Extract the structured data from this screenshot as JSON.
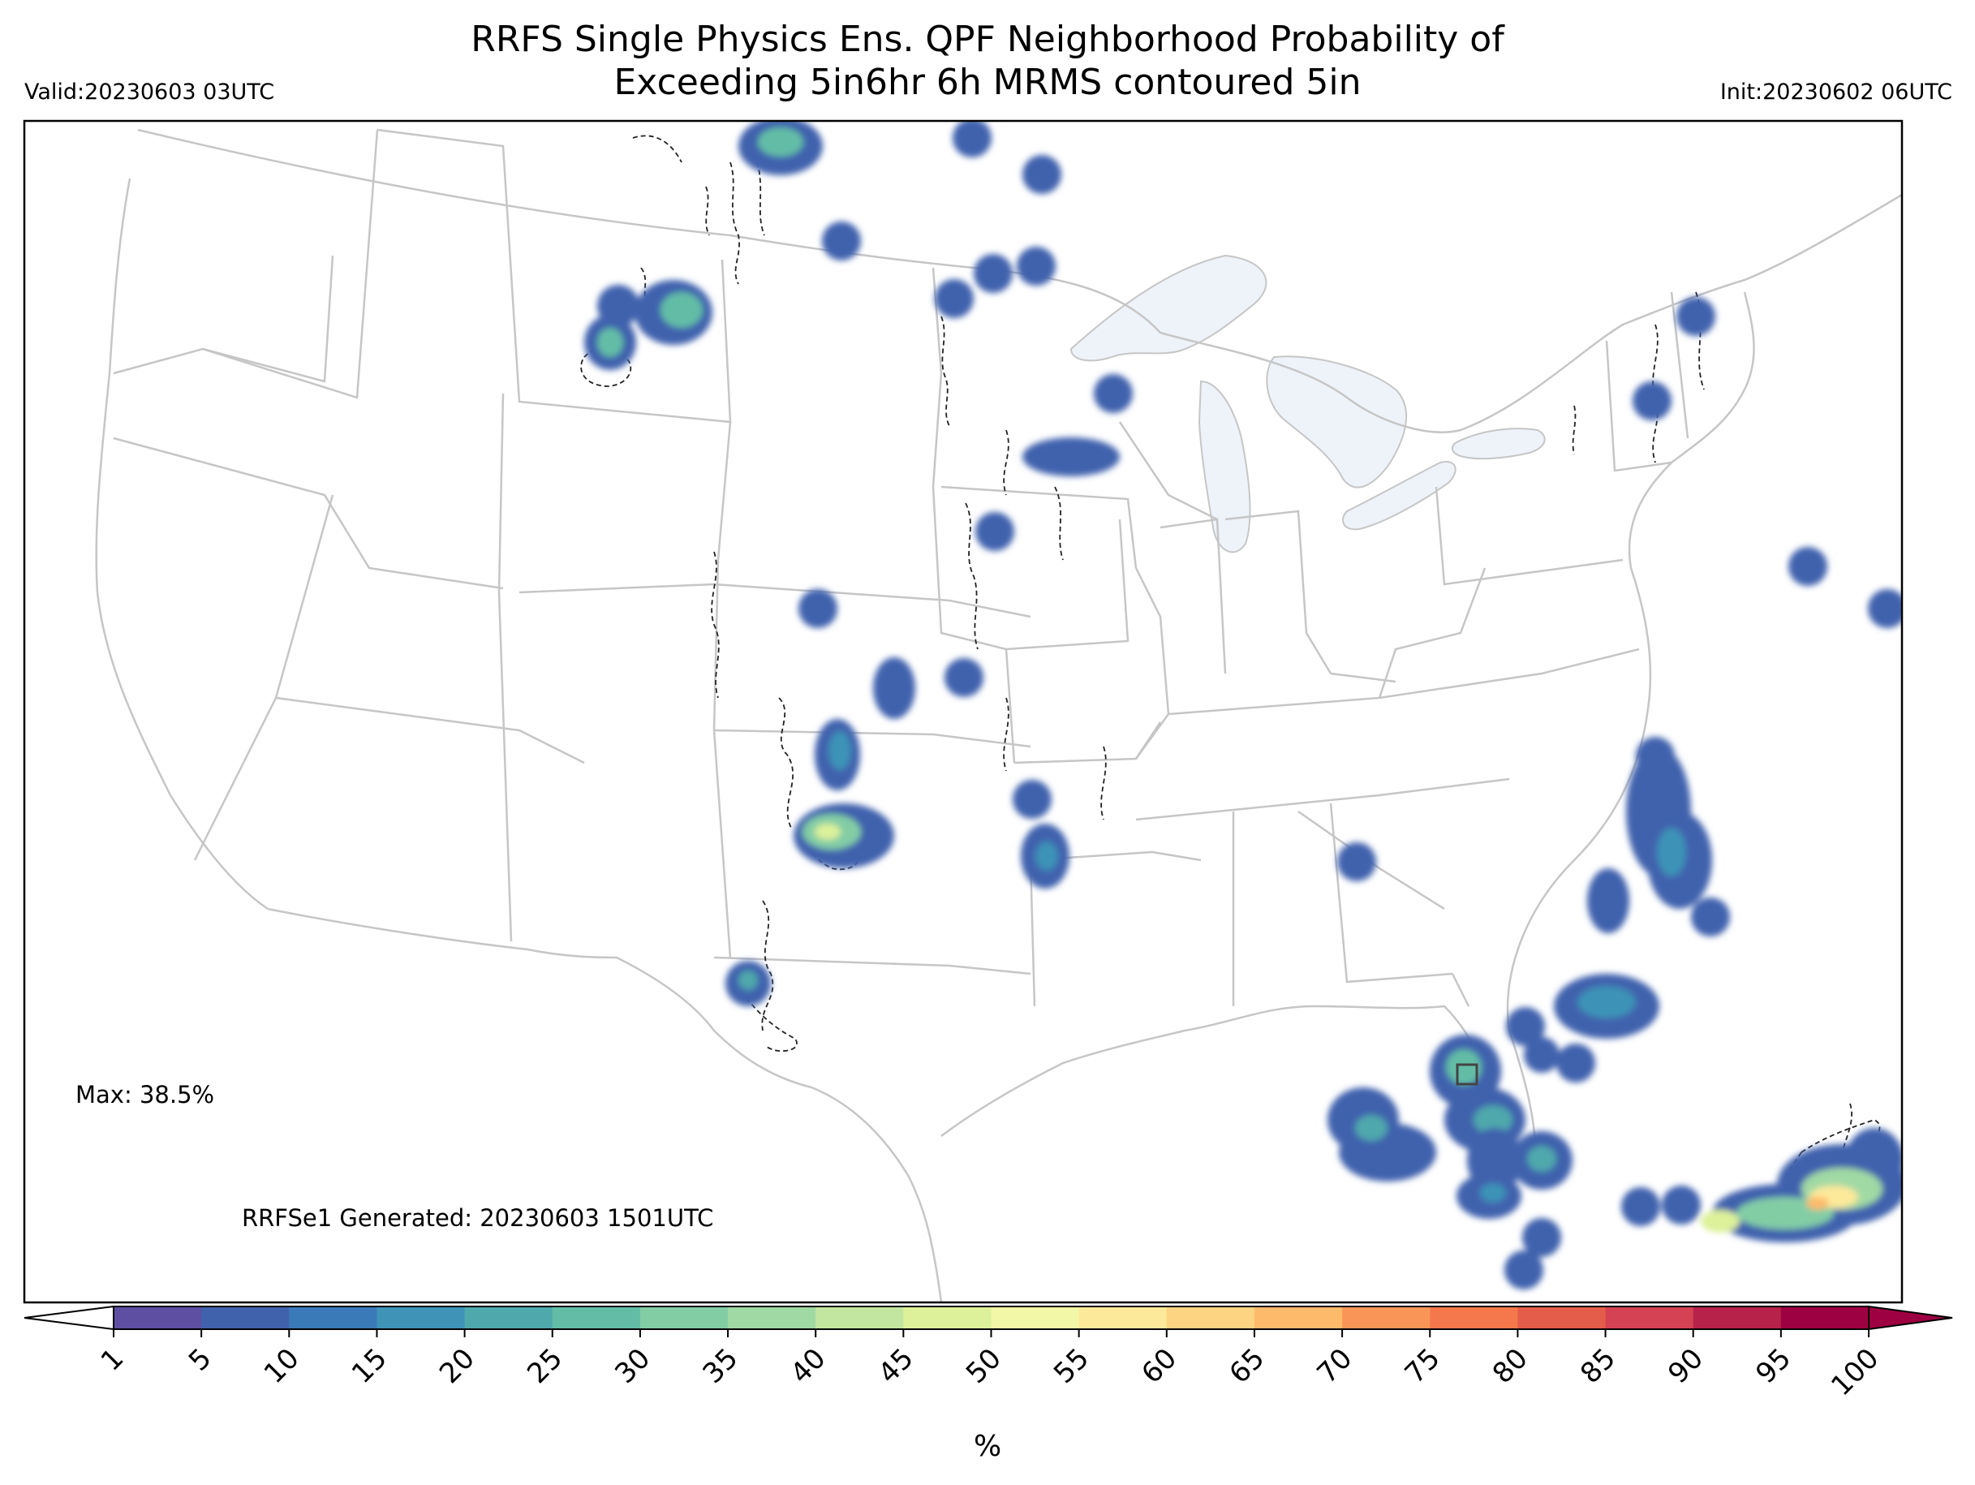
{
  "header": {
    "title_line1": "RRFS Single Physics Ens. QPF Neighborhood Probability of",
    "title_line2": "Exceeding 5in6hr 6h MRMS contoured 5in",
    "valid": "Valid:20230603 03UTC",
    "init": "Init:20230602 06UTC"
  },
  "annotations": {
    "max": "Max: 38.5%",
    "generated": "RRFSe1 Generated: 20230603 1501UTC"
  },
  "colorbar": {
    "unit": "%",
    "ticks": [
      "1",
      "5",
      "10",
      "15",
      "20",
      "25",
      "30",
      "35",
      "40",
      "45",
      "50",
      "55",
      "60",
      "65",
      "70",
      "75",
      "80",
      "85",
      "90",
      "95",
      "100"
    ],
    "colors": [
      "#5e4fa2",
      "#4062ad",
      "#3b7ab8",
      "#3e93b7",
      "#4fa8ac",
      "#63bda6",
      "#83cda5",
      "#a1d9a4",
      "#c2e6a0",
      "#ddf19a",
      "#f1f7a7",
      "#fde99a",
      "#fdd481",
      "#fdba6b",
      "#f99657",
      "#f4784b",
      "#e45d4a",
      "#d54253",
      "#b6224a",
      "#9e0142"
    ],
    "under_color": "#ffffff",
    "over_color": "#9e0142"
  },
  "map": {
    "land_color": "#ffffff",
    "water_color": "#eef3fa",
    "boundary_color": "#c6c6c6"
  }
}
